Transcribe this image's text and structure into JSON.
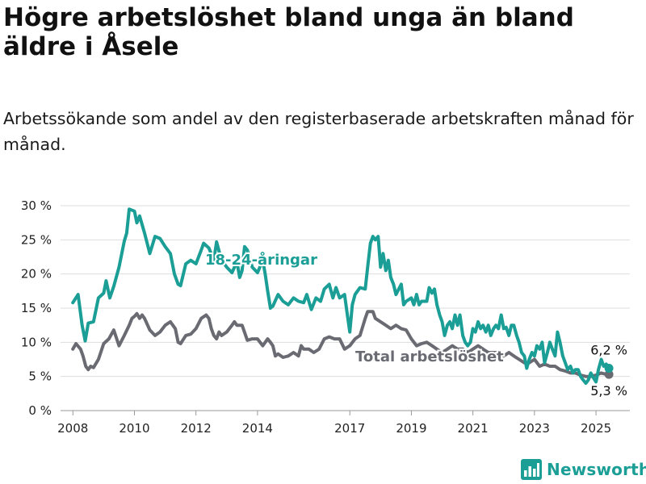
{
  "title": "Högre arbetslöshet bland unga än bland äldre i Åsele",
  "subtitle": "Arbetssökande som andel av den registerbaserade arbetskraften månad för månad.",
  "brand": {
    "name": "Newsworthy",
    "icon": "newsworthy-logo-icon"
  },
  "colors": {
    "youth": "#1a9e96",
    "total": "#6a6a72",
    "grid": "#dddddd"
  },
  "chart_data": {
    "type": "line",
    "xlim": [
      2007.6,
      2026.1
    ],
    "ylim": [
      0,
      30
    ],
    "yticks": [
      0,
      5,
      10,
      15,
      20,
      25,
      30
    ],
    "ytick_labels": [
      "0 %",
      "5 %",
      "10 %",
      "15 %",
      "20 %",
      "25 %",
      "30 %"
    ],
    "xticks": [
      2008,
      2010,
      2012,
      2014,
      2017,
      2019,
      2021,
      2023,
      2025
    ],
    "xtick_labels": [
      "2008",
      "2010",
      "2012",
      "2014",
      "2017",
      "2019",
      "2021",
      "2023",
      "2025"
    ],
    "grid": true,
    "series": [
      {
        "name": "18-24-åringar",
        "color": "#1a9e96",
        "end_label": "6,2 %",
        "points": [
          [
            2008.0,
            15.8
          ],
          [
            2008.17,
            17.0
          ],
          [
            2008.3,
            12.5
          ],
          [
            2008.4,
            10.2
          ],
          [
            2008.5,
            12.8
          ],
          [
            2008.67,
            13.0
          ],
          [
            2008.83,
            16.5
          ],
          [
            2009.0,
            17.2
          ],
          [
            2009.08,
            19.0
          ],
          [
            2009.2,
            16.5
          ],
          [
            2009.33,
            18.2
          ],
          [
            2009.5,
            21.0
          ],
          [
            2009.67,
            24.8
          ],
          [
            2009.75,
            26.0
          ],
          [
            2009.83,
            29.5
          ],
          [
            2010.0,
            29.2
          ],
          [
            2010.08,
            27.5
          ],
          [
            2010.17,
            28.5
          ],
          [
            2010.33,
            26.0
          ],
          [
            2010.5,
            23.0
          ],
          [
            2010.67,
            25.5
          ],
          [
            2010.83,
            25.2
          ],
          [
            2011.0,
            24.0
          ],
          [
            2011.17,
            23.0
          ],
          [
            2011.3,
            20.0
          ],
          [
            2011.42,
            18.5
          ],
          [
            2011.5,
            18.3
          ],
          [
            2011.67,
            21.5
          ],
          [
            2011.83,
            22.0
          ],
          [
            2012.0,
            21.5
          ],
          [
            2012.17,
            23.5
          ],
          [
            2012.25,
            24.5
          ],
          [
            2012.42,
            23.8
          ],
          [
            2012.58,
            22.0
          ],
          [
            2012.67,
            24.7
          ],
          [
            2012.83,
            22.0
          ],
          [
            2013.0,
            21.0
          ],
          [
            2013.17,
            20.2
          ],
          [
            2013.33,
            21.8
          ],
          [
            2013.42,
            19.5
          ],
          [
            2013.5,
            20.5
          ],
          [
            2013.58,
            24.0
          ],
          [
            2013.67,
            23.5
          ],
          [
            2013.83,
            21.0
          ],
          [
            2014.0,
            20.2
          ],
          [
            2014.17,
            22.0
          ],
          [
            2014.25,
            20.0
          ],
          [
            2014.33,
            17.5
          ],
          [
            2014.42,
            15.0
          ],
          [
            2014.5,
            15.3
          ],
          [
            2014.67,
            17.0
          ],
          [
            2014.83,
            16.0
          ],
          [
            2015.0,
            15.5
          ],
          [
            2015.17,
            16.5
          ],
          [
            2015.33,
            16.0
          ],
          [
            2015.5,
            15.8
          ],
          [
            2015.6,
            17.0
          ],
          [
            2015.75,
            14.8
          ],
          [
            2015.9,
            16.5
          ],
          [
            2016.05,
            16.0
          ],
          [
            2016.17,
            17.8
          ],
          [
            2016.33,
            18.5
          ],
          [
            2016.45,
            16.5
          ],
          [
            2016.55,
            18.0
          ],
          [
            2016.67,
            16.5
          ],
          [
            2016.83,
            17.0
          ],
          [
            2016.92,
            14.0
          ],
          [
            2017.0,
            11.5
          ],
          [
            2017.08,
            15.5
          ],
          [
            2017.17,
            17.0
          ],
          [
            2017.33,
            18.0
          ],
          [
            2017.5,
            17.8
          ],
          [
            2017.58,
            21.0
          ],
          [
            2017.67,
            24.5
          ],
          [
            2017.75,
            25.5
          ],
          [
            2017.83,
            25.0
          ],
          [
            2017.92,
            25.5
          ],
          [
            2018.0,
            21.0
          ],
          [
            2018.08,
            23.0
          ],
          [
            2018.17,
            20.5
          ],
          [
            2018.25,
            22.0
          ],
          [
            2018.33,
            19.5
          ],
          [
            2018.42,
            18.5
          ],
          [
            2018.5,
            17.0
          ],
          [
            2018.67,
            18.5
          ],
          [
            2018.75,
            15.5
          ],
          [
            2018.83,
            16.0
          ],
          [
            2019.0,
            16.5
          ],
          [
            2019.08,
            15.5
          ],
          [
            2019.17,
            17.0
          ],
          [
            2019.25,
            15.5
          ],
          [
            2019.33,
            16.0
          ],
          [
            2019.5,
            16.0
          ],
          [
            2019.58,
            18.0
          ],
          [
            2019.67,
            17.2
          ],
          [
            2019.75,
            17.8
          ],
          [
            2019.83,
            15.5
          ],
          [
            2019.92,
            14.0
          ],
          [
            2020.0,
            13.0
          ],
          [
            2020.08,
            11.0
          ],
          [
            2020.17,
            12.5
          ],
          [
            2020.25,
            13.0
          ],
          [
            2020.33,
            12.0
          ],
          [
            2020.42,
            14.0
          ],
          [
            2020.5,
            12.5
          ],
          [
            2020.58,
            14.0
          ],
          [
            2020.67,
            11.0
          ],
          [
            2020.75,
            10.0
          ],
          [
            2020.83,
            9.5
          ],
          [
            2020.92,
            10.0
          ],
          [
            2021.0,
            12.0
          ],
          [
            2021.08,
            11.5
          ],
          [
            2021.17,
            13.0
          ],
          [
            2021.25,
            12.0
          ],
          [
            2021.33,
            12.5
          ],
          [
            2021.42,
            11.5
          ],
          [
            2021.5,
            12.5
          ],
          [
            2021.58,
            11.0
          ],
          [
            2021.67,
            12.0
          ],
          [
            2021.75,
            12.5
          ],
          [
            2021.83,
            12.0
          ],
          [
            2021.92,
            14.0
          ],
          [
            2022.0,
            12.0
          ],
          [
            2022.08,
            12.2
          ],
          [
            2022.17,
            11.0
          ],
          [
            2022.25,
            12.5
          ],
          [
            2022.33,
            12.5
          ],
          [
            2022.42,
            11.0
          ],
          [
            2022.5,
            10.0
          ],
          [
            2022.58,
            8.5
          ],
          [
            2022.67,
            8.0
          ],
          [
            2022.75,
            6.2
          ],
          [
            2022.83,
            7.5
          ],
          [
            2022.92,
            8.5
          ],
          [
            2023.0,
            8.0
          ],
          [
            2023.08,
            9.5
          ],
          [
            2023.17,
            9.0
          ],
          [
            2023.25,
            10.0
          ],
          [
            2023.33,
            7.0
          ],
          [
            2023.42,
            8.5
          ],
          [
            2023.5,
            10.0
          ],
          [
            2023.58,
            9.0
          ],
          [
            2023.67,
            8.0
          ],
          [
            2023.75,
            11.5
          ],
          [
            2023.83,
            10.0
          ],
          [
            2023.92,
            8.0
          ],
          [
            2024.0,
            7.0
          ],
          [
            2024.08,
            6.0
          ],
          [
            2024.17,
            6.5
          ],
          [
            2024.25,
            5.5
          ],
          [
            2024.33,
            6.0
          ],
          [
            2024.42,
            6.0
          ],
          [
            2024.5,
            5.0
          ],
          [
            2024.58,
            4.5
          ],
          [
            2024.67,
            4.0
          ],
          [
            2024.75,
            4.5
          ],
          [
            2024.83,
            5.5
          ],
          [
            2024.92,
            4.8
          ],
          [
            2025.0,
            4.2
          ],
          [
            2025.08,
            6.0
          ],
          [
            2025.17,
            7.5
          ],
          [
            2025.25,
            6.5
          ],
          [
            2025.33,
            6.8
          ],
          [
            2025.42,
            6.2
          ]
        ]
      },
      {
        "name": "Total arbetslöshet",
        "color": "#6a6a72",
        "end_label": "5,3 %",
        "points": [
          [
            2008.0,
            9.0
          ],
          [
            2008.1,
            9.8
          ],
          [
            2008.25,
            9.0
          ],
          [
            2008.33,
            8.0
          ],
          [
            2008.42,
            6.5
          ],
          [
            2008.5,
            6.0
          ],
          [
            2008.58,
            6.5
          ],
          [
            2008.67,
            6.3
          ],
          [
            2008.83,
            7.5
          ],
          [
            2009.0,
            9.8
          ],
          [
            2009.17,
            10.5
          ],
          [
            2009.33,
            11.8
          ],
          [
            2009.5,
            9.5
          ],
          [
            2009.67,
            11.0
          ],
          [
            2009.83,
            12.5
          ],
          [
            2009.92,
            13.5
          ],
          [
            2010.0,
            13.8
          ],
          [
            2010.08,
            14.2
          ],
          [
            2010.17,
            13.5
          ],
          [
            2010.25,
            14.0
          ],
          [
            2010.33,
            13.5
          ],
          [
            2010.5,
            11.8
          ],
          [
            2010.67,
            11.0
          ],
          [
            2010.83,
            11.5
          ],
          [
            2011.0,
            12.5
          ],
          [
            2011.17,
            13.0
          ],
          [
            2011.33,
            12.0
          ],
          [
            2011.42,
            10.0
          ],
          [
            2011.5,
            9.8
          ],
          [
            2011.67,
            11.0
          ],
          [
            2011.83,
            11.2
          ],
          [
            2012.0,
            12.0
          ],
          [
            2012.17,
            13.5
          ],
          [
            2012.33,
            14.0
          ],
          [
            2012.42,
            13.5
          ],
          [
            2012.5,
            12.0
          ],
          [
            2012.58,
            11.0
          ],
          [
            2012.67,
            10.5
          ],
          [
            2012.75,
            11.5
          ],
          [
            2012.83,
            11.0
          ],
          [
            2013.0,
            11.5
          ],
          [
            2013.17,
            12.5
          ],
          [
            2013.25,
            13.0
          ],
          [
            2013.33,
            12.5
          ],
          [
            2013.5,
            12.5
          ],
          [
            2013.67,
            10.3
          ],
          [
            2013.83,
            10.5
          ],
          [
            2014.0,
            10.5
          ],
          [
            2014.17,
            9.5
          ],
          [
            2014.33,
            10.5
          ],
          [
            2014.42,
            10.0
          ],
          [
            2014.5,
            9.5
          ],
          [
            2014.58,
            8.0
          ],
          [
            2014.67,
            8.3
          ],
          [
            2014.83,
            7.8
          ],
          [
            2015.0,
            8.0
          ],
          [
            2015.17,
            8.5
          ],
          [
            2015.33,
            8.0
          ],
          [
            2015.42,
            9.5
          ],
          [
            2015.5,
            9.0
          ],
          [
            2015.67,
            9.0
          ],
          [
            2015.83,
            8.5
          ],
          [
            2016.0,
            9.0
          ],
          [
            2016.17,
            10.5
          ],
          [
            2016.33,
            10.8
          ],
          [
            2016.5,
            10.5
          ],
          [
            2016.67,
            10.5
          ],
          [
            2016.83,
            9.0
          ],
          [
            2017.0,
            9.5
          ],
          [
            2017.17,
            10.5
          ],
          [
            2017.33,
            11.0
          ],
          [
            2017.5,
            13.5
          ],
          [
            2017.58,
            14.5
          ],
          [
            2017.75,
            14.5
          ],
          [
            2017.83,
            13.5
          ],
          [
            2018.0,
            13.0
          ],
          [
            2018.17,
            12.5
          ],
          [
            2018.33,
            12.0
          ],
          [
            2018.5,
            12.5
          ],
          [
            2018.67,
            12.0
          ],
          [
            2018.83,
            11.8
          ],
          [
            2019.0,
            10.5
          ],
          [
            2019.17,
            9.5
          ],
          [
            2019.33,
            9.8
          ],
          [
            2019.5,
            10.0
          ],
          [
            2019.67,
            9.5
          ],
          [
            2019.83,
            9.0
          ],
          [
            2020.0,
            8.5
          ],
          [
            2020.17,
            9.0
          ],
          [
            2020.33,
            9.5
          ],
          [
            2020.5,
            9.0
          ],
          [
            2020.67,
            9.0
          ],
          [
            2020.83,
            8.5
          ],
          [
            2021.0,
            9.0
          ],
          [
            2021.17,
            9.5
          ],
          [
            2021.33,
            9.0
          ],
          [
            2021.5,
            8.5
          ],
          [
            2021.67,
            8.5
          ],
          [
            2021.83,
            8.5
          ],
          [
            2022.0,
            8.0
          ],
          [
            2022.17,
            8.5
          ],
          [
            2022.33,
            8.0
          ],
          [
            2022.5,
            7.5
          ],
          [
            2022.67,
            7.0
          ],
          [
            2022.83,
            7.0
          ],
          [
            2023.0,
            7.5
          ],
          [
            2023.17,
            6.5
          ],
          [
            2023.33,
            6.8
          ],
          [
            2023.5,
            6.5
          ],
          [
            2023.67,
            6.5
          ],
          [
            2023.83,
            6.0
          ],
          [
            2024.0,
            5.8
          ],
          [
            2024.17,
            5.5
          ],
          [
            2024.33,
            5.5
          ],
          [
            2024.5,
            5.2
          ],
          [
            2024.67,
            5.0
          ],
          [
            2024.83,
            5.0
          ],
          [
            2025.0,
            5.2
          ],
          [
            2025.17,
            5.5
          ],
          [
            2025.33,
            5.3
          ],
          [
            2025.42,
            5.3
          ]
        ]
      }
    ],
    "annotations": [
      {
        "text": "18-24-åringar",
        "series": 0
      },
      {
        "text": "Total arbetslöshet",
        "series": 1
      }
    ]
  }
}
